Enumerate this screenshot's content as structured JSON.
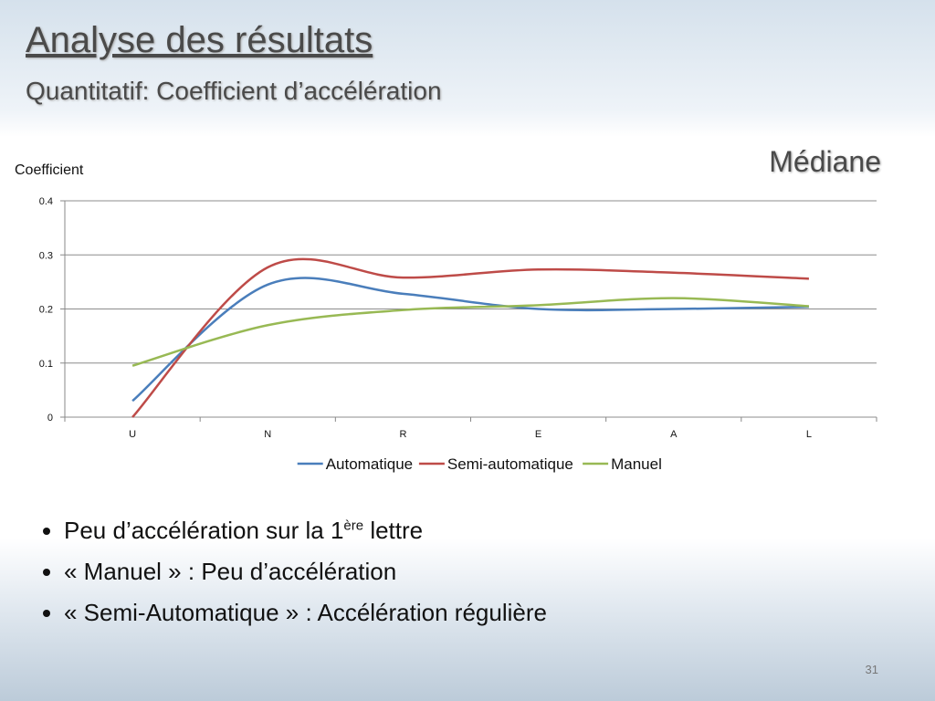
{
  "header": {
    "title": "Analyse des résultats",
    "subtitle": "Quantitatif: Coefficient d’accélération"
  },
  "chart_data": {
    "type": "line",
    "ylabel": "Coefficient",
    "annotation": "Médiane",
    "categories": [
      "U",
      "N",
      "R",
      "E",
      "A",
      "L"
    ],
    "series": [
      {
        "name": "Automatique",
        "color": "#4a7ebb",
        "values": [
          0.03,
          0.245,
          0.228,
          0.2,
          0.2,
          0.204
        ]
      },
      {
        "name": "Semi-automatique",
        "color": "#be4b48",
        "values": [
          0.0,
          0.277,
          0.258,
          0.273,
          0.267,
          0.256
        ]
      },
      {
        "name": "Manuel",
        "color": "#98b954",
        "values": [
          0.095,
          0.17,
          0.198,
          0.207,
          0.22,
          0.205
        ]
      }
    ],
    "ylim": [
      0,
      0.4
    ],
    "yticks": [
      0,
      0.1,
      0.2,
      0.3,
      0.4
    ],
    "grid": true,
    "smooth": true,
    "legend": "bottom"
  },
  "bullets": [
    [
      "Peu d’accélération sur la 1",
      "ère",
      " lettre"
    ],
    [
      "« Manuel » : Peu d’accélération"
    ],
    [
      "« Semi-Automatique » : Accélération régulière"
    ]
  ],
  "page_number": "31"
}
